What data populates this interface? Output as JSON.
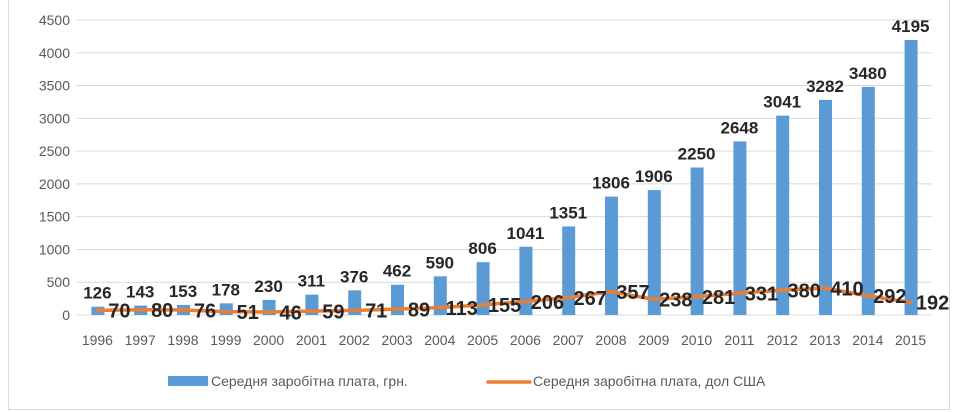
{
  "chart_data": {
    "type": "bar",
    "categories": [
      "1996",
      "1997",
      "1998",
      "1999",
      "2000",
      "2001",
      "2002",
      "2003",
      "2004",
      "2005",
      "2006",
      "2007",
      "2008",
      "2009",
      "2010",
      "2011",
      "2012",
      "2013",
      "2014",
      "2015"
    ],
    "series": [
      {
        "name": "Середня заробітна плата, грн.",
        "type": "bar",
        "color": "#5b9bd5",
        "values": [
          126,
          143,
          153,
          178,
          230,
          311,
          376,
          462,
          590,
          806,
          1041,
          1351,
          1806,
          1906,
          2250,
          2648,
          3041,
          3282,
          3480,
          4195
        ]
      },
      {
        "name": "Середня заробітна плата, дол США",
        "type": "line",
        "color": "#ed7d31",
        "values": [
          70,
          80,
          76,
          51,
          46,
          59,
          71,
          89,
          113,
          155,
          206,
          267,
          357,
          238,
          281,
          331,
          380,
          410,
          292,
          192
        ]
      }
    ],
    "ylim": [
      0,
      4500
    ],
    "yticks": [
      0,
      500,
      1000,
      1500,
      2000,
      2500,
      3000,
      3500,
      4000,
      4500
    ],
    "grid": true,
    "legend": "bottom",
    "data_labels": true
  }
}
